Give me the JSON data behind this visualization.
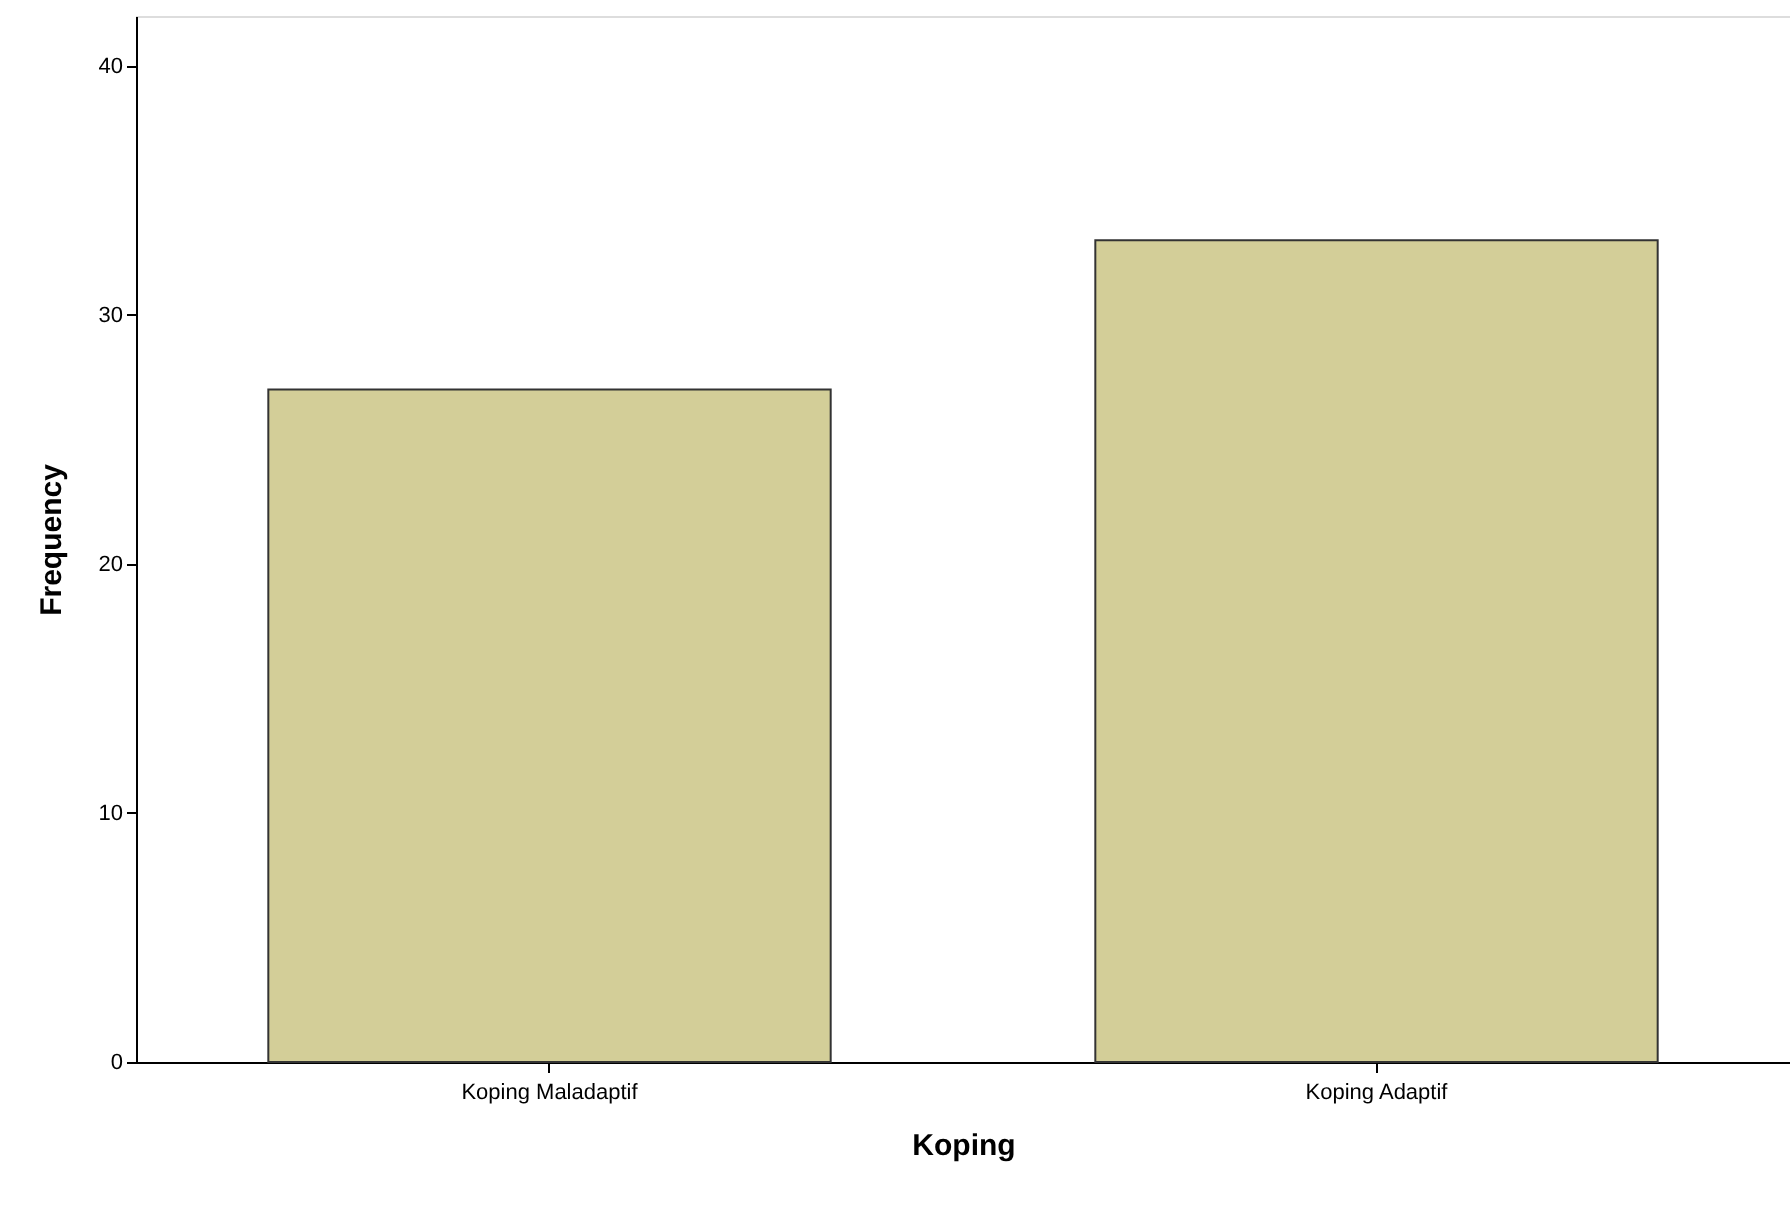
{
  "chart_data": {
    "type": "bar",
    "xlabel": "Koping",
    "ylabel": "Frequency",
    "categories": [
      "Koping Maladaptif",
      "Koping Adaptif"
    ],
    "values": [
      27,
      33
    ],
    "color": "#d3ce98",
    "ylim": [
      0,
      42
    ],
    "yticks": [
      0,
      10,
      20,
      30,
      40
    ],
    "grid": false
  }
}
